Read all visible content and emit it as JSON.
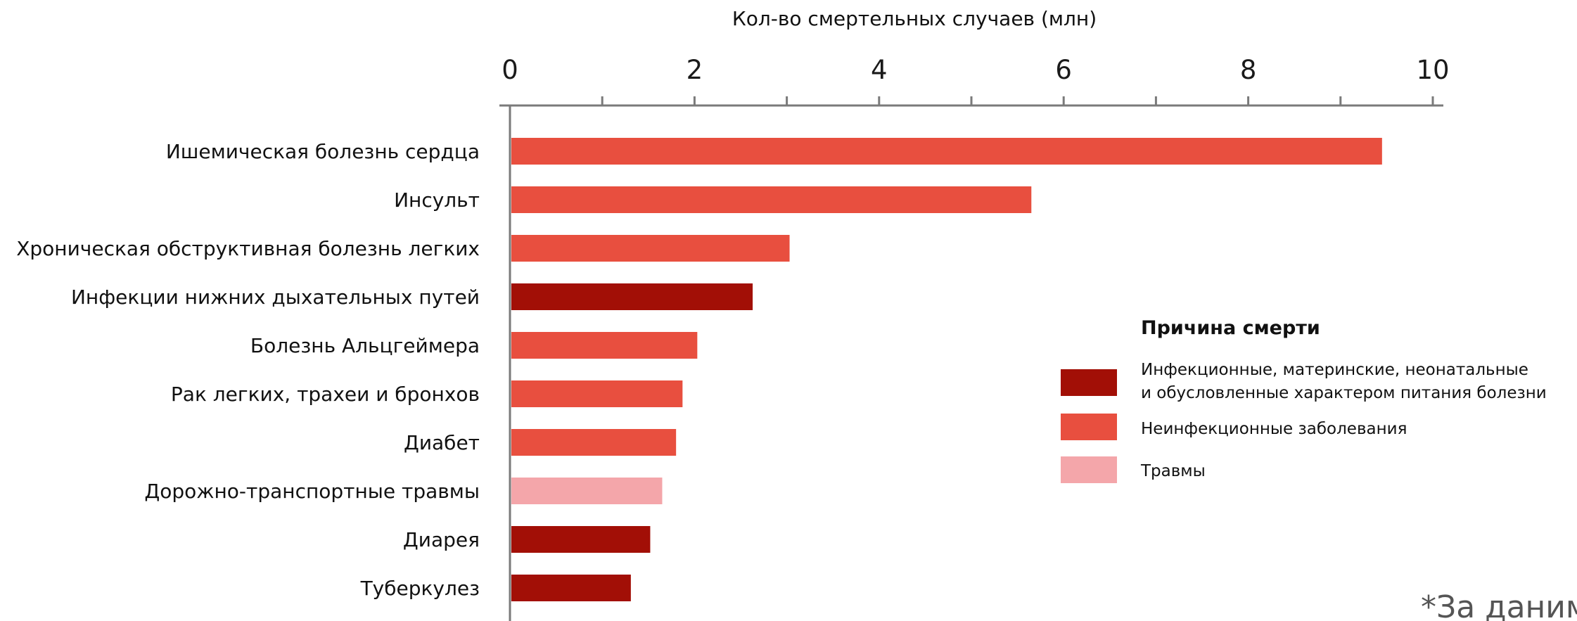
{
  "chart_data": {
    "type": "bar",
    "orientation": "horizontal",
    "xlabel": "Кол-во смертельных случаев (млн)",
    "xlim": [
      0,
      10
    ],
    "x_ticks": [
      0,
      2,
      4,
      6,
      8,
      10
    ],
    "x_tick_labels": [
      "0",
      "2",
      "4",
      "6",
      "8",
      "10"
    ],
    "minor_ticks": true,
    "x_axis_position": "top",
    "grid": false,
    "categories": [
      "Ишемическая болезнь сердца",
      "Инсульт",
      "Хроническая обструктивная болезнь легких",
      "Инфекции нижних дыхательных путей",
      "Болезнь Альцгеймера",
      "Рак легких, трахеи и бронхов",
      "Диабет",
      "Дорожно-транспортные травмы",
      "Диарея",
      "Туберкулез"
    ],
    "values": [
      9.45,
      5.65,
      3.03,
      2.63,
      2.03,
      1.87,
      1.8,
      1.65,
      1.52,
      1.31
    ],
    "groups": [
      "Неинфекционные заболевания",
      "Неинфекционные заболевания",
      "Неинфекционные заболевания",
      "Инфекционные, материнские, неонатальные и обусловленные характером питания болезни",
      "Неинфекционные заболевания",
      "Неинфекционные заболевания",
      "Неинфекционные заболевания",
      "Травмы",
      "Инфекционные, материнские, неонатальные и обусловленные характером питания болезни",
      "Инфекционные, материнские, неонатальные и обусловленные характером питания болезни"
    ],
    "legend": {
      "title": "Причина смерти",
      "placement": "right",
      "items": [
        {
          "line1": "Инфекционные, материнские, неонатальные",
          "line2": "и обусловленные характером питания болезни",
          "label": "Инфекционные, материнские, неонатальные и обусловленные характером питания болезни",
          "color": "#a20f06"
        },
        {
          "line1": "Неинфекционные заболевания",
          "line2": "",
          "label": "Неинфекционные заболевания",
          "color": "#e84f3f"
        },
        {
          "line1": "Травмы",
          "line2": "",
          "label": "Травмы",
          "color": "#f4a6aa"
        }
      ]
    },
    "footnote": "*За даним"
  }
}
